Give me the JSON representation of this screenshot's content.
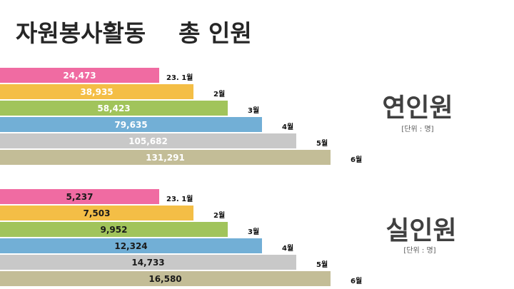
{
  "title": "자원봉사활동    총 인원",
  "colors": [
    "#f06ba2",
    "#f4be46",
    "#a1c45b",
    "#72afd6",
    "#c8c8c8",
    "#c3bd97"
  ],
  "chart_data": [
    {
      "type": "bar",
      "title": "연인원",
      "unit": "[단위 : 명]",
      "categories": [
        "23. 1월",
        "2월",
        "3월",
        "4월",
        "5월",
        "6월"
      ],
      "values": [
        24473,
        38935,
        58423,
        79635,
        105682,
        131291
      ],
      "value_labels": [
        "24,473",
        "38,935",
        "58,423",
        "79,635",
        "105,682",
        "131,291"
      ]
    },
    {
      "type": "bar",
      "title": "실인원",
      "unit": "[단위 : 명]",
      "categories": [
        "23. 1월",
        "2월",
        "3월",
        "4월",
        "5월",
        "6월"
      ],
      "values": [
        5237,
        7503,
        9952,
        12324,
        14733,
        16580
      ],
      "value_labels": [
        "5,237",
        "7,503",
        "9,952",
        "12,324",
        "14,733",
        "16,580"
      ]
    }
  ]
}
